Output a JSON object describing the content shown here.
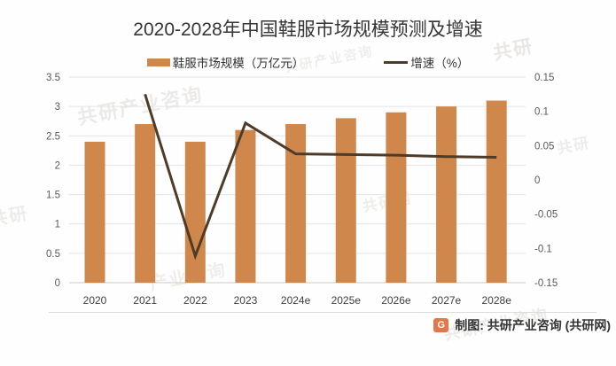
{
  "title": "2020-2028年中国鞋服市场规模预测及增速",
  "footer": {
    "credit": "制图: 共研产业咨询 (共研网)",
    "logo_glyph": "G",
    "logo_color": "#E4764A"
  },
  "watermarks": [
    "共研产业咨询",
    "共研产业咨询",
    "共研",
    "共研",
    "产业咨询",
    "共研网",
    "共研产业咨询",
    "共研"
  ],
  "chart_data": {
    "type": "combo-bar-line",
    "title": "2020-2028年中国鞋服市场规模预测及增速",
    "categories": [
      "2020",
      "2021",
      "2022",
      "2023",
      "2024e",
      "2025e",
      "2026e",
      "2027e",
      "2028e"
    ],
    "series": [
      {
        "name": "鞋服市场规模（万亿元）",
        "type": "bar",
        "axis": "left",
        "color": "#D0874B",
        "values": [
          2.4,
          2.7,
          2.4,
          2.6,
          2.7,
          2.8,
          2.9,
          3.0,
          3.1
        ]
      },
      {
        "name": "增速（%）",
        "type": "line",
        "axis": "right",
        "color": "#4E3B29",
        "values": [
          null,
          0.125,
          -0.111,
          0.083,
          0.038,
          0.037,
          0.036,
          0.034,
          0.033
        ]
      }
    ],
    "left_axis": {
      "min": 0,
      "max": 3.5,
      "ticks": [
        "3.5",
        "3",
        "2.5",
        "2",
        "1.5",
        "1",
        "0.5",
        "0"
      ]
    },
    "right_axis": {
      "min": -0.15,
      "max": 0.15,
      "ticks": [
        "0.15",
        "0.1",
        "0.05",
        "0",
        "-0.05",
        "-0.1",
        "-0.15"
      ]
    },
    "grid": "horizontal",
    "legend_position": "top"
  }
}
